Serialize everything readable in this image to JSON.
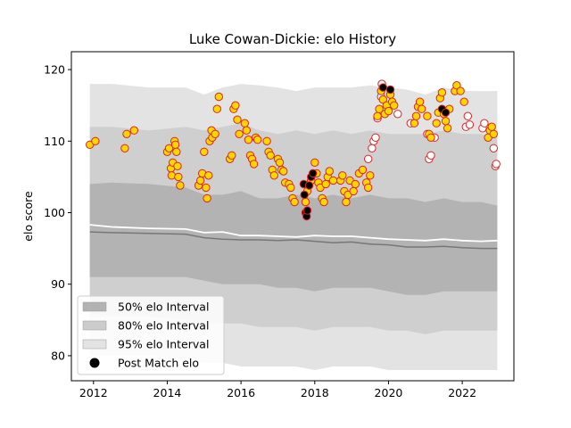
{
  "chart_data": {
    "type": "scatter",
    "title": "Luke Cowan-Dickie: elo History",
    "xlabel": "",
    "ylabel": "elo score",
    "xlim": [
      2011.4,
      2023.4
    ],
    "ylim": [
      76.5,
      122.5
    ],
    "x_ticks": [
      2012,
      2014,
      2016,
      2018,
      2020,
      2022
    ],
    "y_ticks": [
      80,
      90,
      100,
      110,
      120
    ],
    "grid": false,
    "legend_position": "lower-left",
    "legend": [
      {
        "label": "50% elo Interval",
        "color": "#b3b3b3"
      },
      {
        "label": "80% elo Interval",
        "color": "#cccccc"
      },
      {
        "label": "95% elo Interval",
        "color": "#e3e3e3"
      },
      {
        "label": "Post Match elo",
        "color": "#000000"
      }
    ],
    "colors": {
      "band95": "#e3e3e3",
      "band80": "#cfcfcf",
      "band50": "#b3b3b3",
      "median_line": "#777777",
      "mean_line": "#ffffff",
      "point_fill_win": "#ffd700",
      "point_edge_win": "#dd2222",
      "point_fill_loss": "#ffffff",
      "point_edge_loss": "#dd2222",
      "point_fill_post": "#000000"
    },
    "bands": {
      "x": [
        2011.9,
        2012.5,
        2013.5,
        2014.5,
        2015.0,
        2015.5,
        2016.0,
        2016.5,
        2017.0,
        2017.5,
        2018.0,
        2018.5,
        2019.0,
        2019.5,
        2020.0,
        2020.5,
        2021.0,
        2021.5,
        2022.0,
        2022.5,
        2022.95
      ],
      "p975": [
        118.0,
        118.0,
        117.5,
        117.5,
        116.5,
        117.5,
        118.0,
        117.8,
        117.5,
        117.0,
        117.5,
        117.5,
        117.5,
        117.8,
        117.5,
        117.2,
        116.5,
        117.5,
        117.0,
        117.0,
        117.0
      ],
      "p90": [
        112.0,
        112.0,
        111.5,
        112.0,
        111.5,
        112.0,
        112.5,
        111.5,
        111.0,
        111.5,
        111.0,
        111.5,
        111.0,
        111.5,
        111.0,
        111.0,
        111.0,
        111.5,
        111.0,
        111.0,
        110.5
      ],
      "p75": [
        104.0,
        104.2,
        104.0,
        103.5,
        102.5,
        102.5,
        103.0,
        102.0,
        102.0,
        102.5,
        102.0,
        102.5,
        102.0,
        102.5,
        102.0,
        102.0,
        101.5,
        102.0,
        101.5,
        101.5,
        101.0
      ],
      "p25": [
        91.0,
        91.0,
        91.0,
        91.0,
        90.5,
        90.0,
        90.0,
        90.0,
        89.5,
        89.5,
        89.0,
        89.5,
        89.5,
        89.5,
        89.0,
        88.5,
        88.5,
        89.0,
        89.0,
        89.0,
        89.0
      ],
      "p10": [
        85.5,
        85.5,
        85.5,
        85.0,
        84.5,
        84.5,
        84.5,
        84.0,
        84.0,
        84.0,
        83.5,
        84.0,
        84.0,
        84.0,
        83.5,
        83.5,
        83.0,
        83.5,
        83.5,
        83.5,
        83.5
      ],
      "p025": [
        80.0,
        80.0,
        80.0,
        79.5,
        79.0,
        79.0,
        78.5,
        78.5,
        78.5,
        78.5,
        78.0,
        78.5,
        78.5,
        78.5,
        78.0,
        78.0,
        78.0,
        78.0,
        78.0,
        78.0,
        78.0
      ],
      "median": [
        97.3,
        97.2,
        97.1,
        97.0,
        96.5,
        96.3,
        96.2,
        96.2,
        96.1,
        96.2,
        96.0,
        95.8,
        95.9,
        95.6,
        95.5,
        95.2,
        95.2,
        95.3,
        95.1,
        95.0,
        95.0
      ],
      "mean": [
        98.3,
        98.0,
        97.8,
        97.7,
        97.2,
        97.3,
        96.8,
        96.8,
        96.7,
        96.6,
        96.8,
        96.7,
        96.7,
        96.5,
        96.3,
        96.2,
        96.1,
        96.3,
        96.1,
        96.0,
        96.1
      ]
    },
    "points_win": [
      [
        2011.9,
        109.5
      ],
      [
        2012.05,
        110.0
      ],
      [
        2012.85,
        109.0
      ],
      [
        2012.9,
        111.0
      ],
      [
        2013.1,
        111.5
      ],
      [
        2014.0,
        108.5
      ],
      [
        2014.05,
        109.0
      ],
      [
        2014.1,
        106.2
      ],
      [
        2014.12,
        105.2
      ],
      [
        2014.15,
        107.0
      ],
      [
        2014.2,
        110.0
      ],
      [
        2014.22,
        109.5
      ],
      [
        2014.25,
        108.5
      ],
      [
        2014.28,
        106.5
      ],
      [
        2014.3,
        105.0
      ],
      [
        2014.35,
        103.8
      ],
      [
        2014.85,
        103.8
      ],
      [
        2014.9,
        104.5
      ],
      [
        2014.95,
        105.5
      ],
      [
        2015.0,
        108.5
      ],
      [
        2015.05,
        103.5
      ],
      [
        2015.08,
        102.0
      ],
      [
        2015.12,
        105.2
      ],
      [
        2015.15,
        110.0
      ],
      [
        2015.2,
        111.5
      ],
      [
        2015.22,
        110.5
      ],
      [
        2015.3,
        111.0
      ],
      [
        2015.35,
        114.5
      ],
      [
        2015.4,
        116.2
      ],
      [
        2015.7,
        107.5
      ],
      [
        2015.75,
        108.0
      ],
      [
        2015.8,
        114.5
      ],
      [
        2015.85,
        115.0
      ],
      [
        2015.9,
        113.0
      ],
      [
        2015.95,
        111.0
      ],
      [
        2016.1,
        112.5
      ],
      [
        2016.15,
        111.5
      ],
      [
        2016.2,
        110.2
      ],
      [
        2016.25,
        108.0
      ],
      [
        2016.3,
        107.5
      ],
      [
        2016.35,
        106.8
      ],
      [
        2016.4,
        110.5
      ],
      [
        2016.45,
        110.2
      ],
      [
        2016.7,
        110.0
      ],
      [
        2016.75,
        108.5
      ],
      [
        2016.8,
        108.0
      ],
      [
        2016.85,
        106.0
      ],
      [
        2016.9,
        105.2
      ],
      [
        2017.0,
        107.5
      ],
      [
        2017.05,
        107.0
      ],
      [
        2017.1,
        106.0
      ],
      [
        2017.15,
        105.8
      ],
      [
        2017.2,
        104.2
      ],
      [
        2017.3,
        104.0
      ],
      [
        2017.35,
        103.5
      ],
      [
        2017.4,
        102.0
      ],
      [
        2017.45,
        101.5
      ],
      [
        2017.75,
        101.5
      ],
      [
        2017.8,
        103.0
      ],
      [
        2017.85,
        104.0
      ],
      [
        2017.9,
        104.5
      ],
      [
        2017.95,
        105.5
      ],
      [
        2018.0,
        107.0
      ],
      [
        2018.05,
        105.5
      ],
      [
        2018.1,
        104.2
      ],
      [
        2018.15,
        103.5
      ],
      [
        2018.2,
        102.0
      ],
      [
        2018.25,
        101.5
      ],
      [
        2018.3,
        104.0
      ],
      [
        2018.35,
        105.0
      ],
      [
        2018.4,
        105.8
      ],
      [
        2018.5,
        104.5
      ],
      [
        2018.7,
        104.5
      ],
      [
        2018.75,
        105.2
      ],
      [
        2018.8,
        103.0
      ],
      [
        2018.85,
        101.5
      ],
      [
        2018.9,
        102.5
      ],
      [
        2018.95,
        104.5
      ],
      [
        2019.05,
        103.0
      ],
      [
        2019.1,
        104.0
      ],
      [
        2019.2,
        105.5
      ],
      [
        2019.3,
        106.0
      ],
      [
        2019.4,
        104.2
      ],
      [
        2019.45,
        103.5
      ],
      [
        2019.5,
        105.2
      ],
      [
        2019.7,
        113.5
      ],
      [
        2019.75,
        114.5
      ],
      [
        2019.8,
        117.0
      ],
      [
        2019.85,
        115.8
      ],
      [
        2019.9,
        113.8
      ],
      [
        2019.95,
        115.0
      ],
      [
        2020.0,
        114.2
      ],
      [
        2020.05,
        116.5
      ],
      [
        2020.1,
        115.5
      ],
      [
        2020.15,
        115.0
      ],
      [
        2020.7,
        112.5
      ],
      [
        2020.75,
        113.5
      ],
      [
        2020.8,
        114.8
      ],
      [
        2020.85,
        115.5
      ],
      [
        2020.9,
        114.5
      ],
      [
        2021.05,
        113.5
      ],
      [
        2021.1,
        111.0
      ],
      [
        2021.15,
        110.5
      ],
      [
        2021.3,
        112.5
      ],
      [
        2021.35,
        114.0
      ],
      [
        2021.4,
        116.0
      ],
      [
        2021.45,
        116.8
      ],
      [
        2021.5,
        113.8
      ],
      [
        2021.55,
        112.8
      ],
      [
        2021.6,
        111.8
      ],
      [
        2021.65,
        114.5
      ],
      [
        2021.8,
        117.0
      ],
      [
        2021.85,
        117.8
      ],
      [
        2021.95,
        117.0
      ],
      [
        2022.05,
        115.5
      ],
      [
        2022.7,
        110.5
      ],
      [
        2022.75,
        111.5
      ],
      [
        2022.8,
        112.0
      ],
      [
        2022.85,
        111.0
      ]
    ],
    "points_loss": [
      [
        2019.45,
        107.5
      ],
      [
        2019.6,
        110.0
      ],
      [
        2019.65,
        110.5
      ],
      [
        2019.7,
        113.2
      ],
      [
        2019.8,
        116.2
      ],
      [
        2019.82,
        118.0
      ],
      [
        2020.25,
        113.8
      ],
      [
        2020.6,
        112.5
      ],
      [
        2021.1,
        107.5
      ],
      [
        2021.15,
        108.0
      ],
      [
        2021.25,
        110.5
      ],
      [
        2022.1,
        112.0
      ],
      [
        2022.15,
        113.5
      ],
      [
        2022.2,
        112.3
      ],
      [
        2022.55,
        111.8
      ],
      [
        2022.6,
        112.5
      ],
      [
        2022.85,
        109.0
      ],
      [
        2022.9,
        106.5
      ],
      [
        2022.92,
        106.8
      ],
      [
        2021.05,
        111.0
      ],
      [
        2019.55,
        109.0
      ]
    ],
    "points_post": [
      [
        2017.7,
        104.0
      ],
      [
        2017.72,
        102.5
      ],
      [
        2017.75,
        100.0
      ],
      [
        2017.78,
        99.5
      ],
      [
        2017.8,
        100.3
      ],
      [
        2017.85,
        103.8
      ],
      [
        2017.9,
        105.0
      ],
      [
        2017.95,
        105.5
      ],
      [
        2019.85,
        117.5
      ],
      [
        2020.05,
        117.2
      ],
      [
        2021.45,
        114.5
      ],
      [
        2021.55,
        114.0
      ]
    ]
  }
}
